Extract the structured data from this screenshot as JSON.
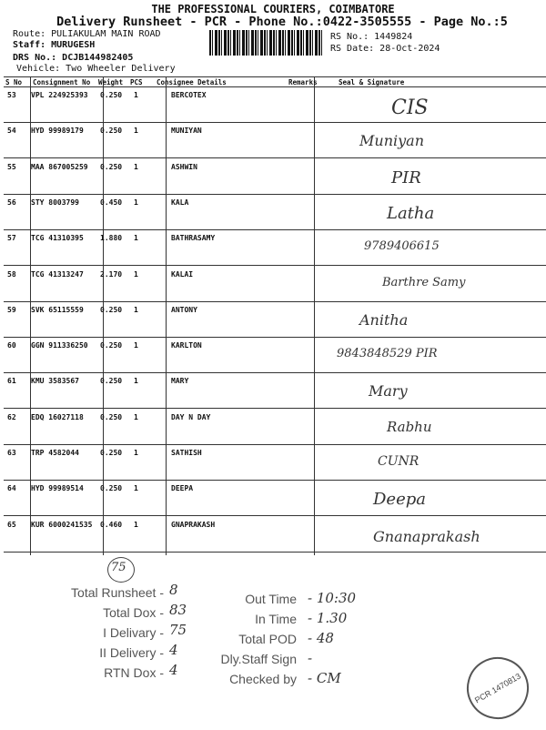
{
  "header": {
    "company": "THE PROFESSIONAL COURIERS, COIMBATORE",
    "title": "Delivery Runsheet - PCR - Phone No.:0422-3505555 - Page No.:5"
  },
  "meta": {
    "route": "Route: PULIAKULAM MAIN ROAD",
    "staff": "Staff: MURUGESH",
    "drs": "DRS No.: DCJB144982405",
    "vehicle": "Vehicle: Two Wheeler Delivery",
    "rs_no": "RS No.: 1449824",
    "rs_date": "RS Date: 28-Oct-2024"
  },
  "columns": {
    "sno": "S No",
    "consignment": "Consignment No",
    "weight": "Weight",
    "pcs": "PCS",
    "consignee": "Consignee Details",
    "remarks": "Remarks",
    "seal": "Seal & Signature"
  },
  "rows": [
    {
      "sno": "53",
      "cn": "VPL 224925393",
      "wt": "0.250",
      "pcs": "1",
      "name": "BERCOTEX",
      "sig": "CIS"
    },
    {
      "sno": "54",
      "cn": "HYD 99989179",
      "wt": "0.250",
      "pcs": "1",
      "name": "MUNIYAN",
      "sig": "Muniyan"
    },
    {
      "sno": "55",
      "cn": "MAA 867005259",
      "wt": "0.250",
      "pcs": "1",
      "name": "ASHWIN",
      "sig": "PIR"
    },
    {
      "sno": "56",
      "cn": "STY 8003799",
      "wt": "0.450",
      "pcs": "1",
      "name": "KALA",
      "sig": "Latha"
    },
    {
      "sno": "57",
      "cn": "TCG 41310395",
      "wt": "1.880",
      "pcs": "1",
      "name": "BATHRASAMY",
      "sig": "9789406615"
    },
    {
      "sno": "58",
      "cn": "TCG 41313247",
      "wt": "2.170",
      "pcs": "1",
      "name": "KALAI",
      "sig": "Barthre Samy"
    },
    {
      "sno": "59",
      "cn": "SVK 65115559",
      "wt": "0.250",
      "pcs": "1",
      "name": "ANTONY",
      "sig": "Anitha"
    },
    {
      "sno": "60",
      "cn": "GGN 911336250",
      "wt": "0.250",
      "pcs": "1",
      "name": "KARLTON",
      "sig": "9843848529 PIR"
    },
    {
      "sno": "61",
      "cn": "KMU 3583567",
      "wt": "0.250",
      "pcs": "1",
      "name": "MARY",
      "sig": "Mary"
    },
    {
      "sno": "62",
      "cn": "EDQ 16027118",
      "wt": "0.250",
      "pcs": "1",
      "name": "DAY N DAY",
      "sig": "Rabhu"
    },
    {
      "sno": "63",
      "cn": "TRP 4582044",
      "wt": "0.250",
      "pcs": "1",
      "name": "SATHISH",
      "sig": "CUNR"
    },
    {
      "sno": "64",
      "cn": "HYD 99989514",
      "wt": "0.250",
      "pcs": "1",
      "name": "DEEPA",
      "sig": "Deepa"
    },
    {
      "sno": "65",
      "cn": "KUR 6000241535",
      "wt": "0.460",
      "pcs": "1",
      "name": "GNAPRAKASH",
      "sig": "Gnanaprakash"
    }
  ],
  "summary": {
    "circled": "75",
    "left": [
      {
        "label": "Total Runsheet -",
        "value": "8"
      },
      {
        "label": "Total Dox -",
        "value": "83"
      },
      {
        "label": "I Delivary -",
        "value": "75"
      },
      {
        "label": "II Delivery -",
        "value": "4"
      },
      {
        "label": "RTN Dox -",
        "value": "4"
      }
    ],
    "right": [
      {
        "label": "Out Time",
        "value": "- 10:30"
      },
      {
        "label": "In Time",
        "value": "- 1.30"
      },
      {
        "label": "Total POD",
        "value": "- 48"
      },
      {
        "label": "Dly.Staff Sign",
        "value": "-"
      },
      {
        "label": "Checked by",
        "value": "- CM"
      }
    ]
  },
  "stamp": "PCR 1470813"
}
